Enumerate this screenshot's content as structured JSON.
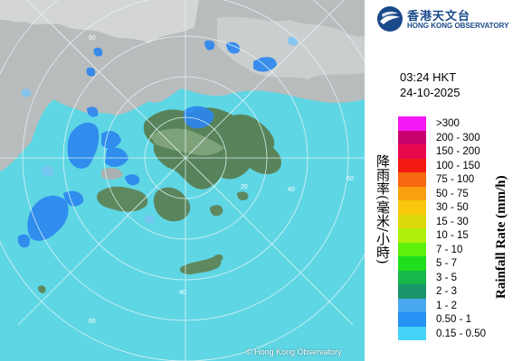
{
  "observatory": {
    "name_zh": "香港天文台",
    "name_en": "HONG KONG OBSERVATORY"
  },
  "timestamp": {
    "time": "03:24 HKT",
    "date": "24-10-2025"
  },
  "legend": {
    "title_zh": "降雨率(毫米/小時)",
    "title_en": "Rainfall Rate (mm/h)",
    "items": [
      {
        "label": ">300",
        "color": "#f518f5"
      },
      {
        "label": "200 - 300",
        "color": "#c8006e"
      },
      {
        "label": "150 - 200",
        "color": "#e8084e"
      },
      {
        "label": "100 - 150",
        "color": "#f21a12"
      },
      {
        "label": "75 - 100",
        "color": "#f86810"
      },
      {
        "label": "50 - 75",
        "color": "#f8a00e"
      },
      {
        "label": "30 - 50",
        "color": "#f8c80c"
      },
      {
        "label": "15 - 30",
        "color": "#dcd80a"
      },
      {
        "label": "10 - 15",
        "color": "#aef00a"
      },
      {
        "label": "7 - 10",
        "color": "#5ef00a"
      },
      {
        "label": "5 - 7",
        "color": "#1ede1e"
      },
      {
        "label": "3 - 5",
        "color": "#17b84a"
      },
      {
        "label": "2 - 3",
        "color": "#18956a"
      },
      {
        "label": "1 - 2",
        "color": "#4aa8f0"
      },
      {
        "label": "0.50 - 1",
        "color": "#2692f5"
      },
      {
        "label": "0.15 - 0.50",
        "color": "#45d4f8"
      }
    ]
  },
  "map": {
    "range_ring_labels": [
      "60",
      "20",
      "40",
      "60",
      "40",
      "60"
    ],
    "copyright": "© Hong Kong Observatory"
  }
}
